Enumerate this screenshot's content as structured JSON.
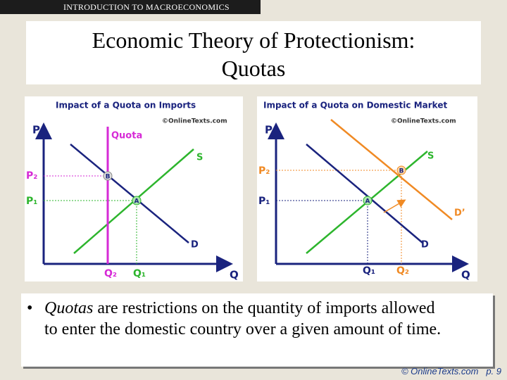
{
  "header": {
    "course": "INTRODUCTION TO MACROECONOMICS"
  },
  "title": {
    "line1": "Economic Theory of Protectionism:",
    "line2": "Quotas"
  },
  "diagrams": [
    {
      "title": "Impact of a Quota on Imports",
      "watermark": "©OnlineTexts.com",
      "labels": {
        "p_axis": "P",
        "q_axis": "Q",
        "quota": "Quota",
        "supply": "S",
        "demand": "D",
        "p2": "P₂",
        "p1": "P₁",
        "q2": "Q₂",
        "q1": "Q₁",
        "a": "A",
        "b": "B"
      }
    },
    {
      "title": "Impact of a Quota on Domestic Market",
      "watermark": "©OnlineTexts.com",
      "labels": {
        "p_axis": "P",
        "q_axis": "Q",
        "supply": "S",
        "demand": "D",
        "demand_new": "D’",
        "p2": "P₂",
        "p1": "P₁",
        "q1": "Q₁",
        "q2": "Q₂",
        "a": "A",
        "b": "B"
      }
    }
  ],
  "bullet": {
    "emphasis": "Quotas",
    "text": " are restrictions on the quantity of imports allowed to enter the domestic country over a given amount of time."
  },
  "footer": {
    "source": "© OnlineTexts.com",
    "page": "p. 9"
  }
}
